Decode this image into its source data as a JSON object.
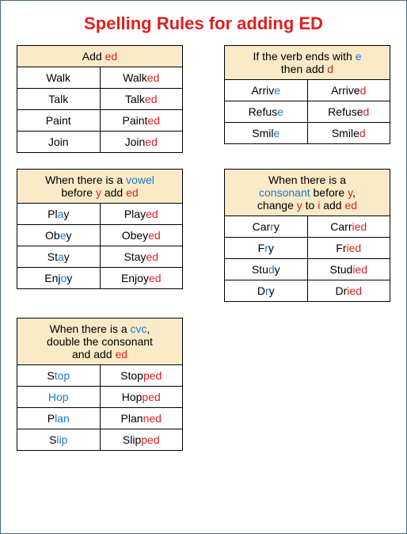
{
  "title": "Spelling Rules for adding ED",
  "tables": [
    {
      "header": [
        {
          "t": "Add ",
          "c": ""
        },
        {
          "t": "ed",
          "c": "red"
        }
      ],
      "rows": [
        [
          [
            {
              "t": "Walk"
            }
          ],
          [
            {
              "t": "Walk"
            },
            {
              "t": "ed",
              "c": "red"
            }
          ]
        ],
        [
          [
            {
              "t": "Talk"
            }
          ],
          [
            {
              "t": "Talk"
            },
            {
              "t": "ed",
              "c": "red"
            }
          ]
        ],
        [
          [
            {
              "t": "Paint"
            }
          ],
          [
            {
              "t": "Paint"
            },
            {
              "t": "ed",
              "c": "red"
            }
          ]
        ],
        [
          [
            {
              "t": "Join"
            }
          ],
          [
            {
              "t": "Join"
            },
            {
              "t": "ed",
              "c": "red"
            }
          ]
        ]
      ]
    },
    {
      "header": [
        {
          "t": "If the verb ends with "
        },
        {
          "t": "e",
          "c": "blue"
        },
        {
          "t": "\nthen add "
        },
        {
          "t": "d",
          "c": "red"
        }
      ],
      "rows": [
        [
          [
            {
              "t": "Arriv"
            },
            {
              "t": "e",
              "c": "blue"
            }
          ],
          [
            {
              "t": "Arrive"
            },
            {
              "t": "d",
              "c": "red"
            }
          ]
        ],
        [
          [
            {
              "t": "Refus"
            },
            {
              "t": "e",
              "c": "blue"
            }
          ],
          [
            {
              "t": "Refuse"
            },
            {
              "t": "d",
              "c": "red"
            }
          ]
        ],
        [
          [
            {
              "t": "Smil"
            },
            {
              "t": "e",
              "c": "blue"
            }
          ],
          [
            {
              "t": "Smile"
            },
            {
              "t": "d",
              "c": "red"
            }
          ]
        ]
      ]
    },
    {
      "header": [
        {
          "t": "When there is a "
        },
        {
          "t": "vowel",
          "c": "blue"
        },
        {
          "t": "\nbefore "
        },
        {
          "t": "y",
          "c": "red"
        },
        {
          "t": " add "
        },
        {
          "t": "ed",
          "c": "red"
        }
      ],
      "rows": [
        [
          [
            {
              "t": "Pl"
            },
            {
              "t": "a",
              "c": "blue"
            },
            {
              "t": "y"
            }
          ],
          [
            {
              "t": "Play"
            },
            {
              "t": "ed",
              "c": "red"
            }
          ]
        ],
        [
          [
            {
              "t": "Ob"
            },
            {
              "t": "e",
              "c": "blue"
            },
            {
              "t": "y"
            }
          ],
          [
            {
              "t": "Obey"
            },
            {
              "t": "ed",
              "c": "red"
            }
          ]
        ],
        [
          [
            {
              "t": "St"
            },
            {
              "t": "a",
              "c": "blue"
            },
            {
              "t": "y"
            }
          ],
          [
            {
              "t": "Stay"
            },
            {
              "t": "ed",
              "c": "red"
            }
          ]
        ],
        [
          [
            {
              "t": "Enj"
            },
            {
              "t": "o",
              "c": "blue"
            },
            {
              "t": "y"
            }
          ],
          [
            {
              "t": "Enjoy"
            },
            {
              "t": "ed",
              "c": "red"
            }
          ]
        ]
      ]
    },
    {
      "header": [
        {
          "t": "When there is a\n"
        },
        {
          "t": "consonant",
          "c": "blue"
        },
        {
          "t": " before "
        },
        {
          "t": "y",
          "c": "red"
        },
        {
          "t": ",\nchange "
        },
        {
          "t": "y",
          "c": "red"
        },
        {
          "t": " to "
        },
        {
          "t": "i",
          "c": "red"
        },
        {
          "t": " add "
        },
        {
          "t": "ed",
          "c": "red"
        }
      ],
      "rows": [
        [
          [
            {
              "t": "Car"
            },
            {
              "t": "r",
              "c": "blue"
            },
            {
              "t": "y"
            }
          ],
          [
            {
              "t": "Carr"
            },
            {
              "t": "ied",
              "c": "red"
            }
          ]
        ],
        [
          [
            {
              "t": "F"
            },
            {
              "t": "r",
              "c": "blue"
            },
            {
              "t": "y"
            }
          ],
          [
            {
              "t": "Fr"
            },
            {
              "t": "ied",
              "c": "red"
            }
          ]
        ],
        [
          [
            {
              "t": "Stu"
            },
            {
              "t": "d",
              "c": "blue"
            },
            {
              "t": "y"
            }
          ],
          [
            {
              "t": "Stud"
            },
            {
              "t": "ied",
              "c": "red"
            }
          ]
        ],
        [
          [
            {
              "t": "D"
            },
            {
              "t": "r",
              "c": "blue"
            },
            {
              "t": "y"
            }
          ],
          [
            {
              "t": "Dr"
            },
            {
              "t": "ied",
              "c": "red"
            }
          ]
        ]
      ]
    },
    {
      "header": [
        {
          "t": "When there is a "
        },
        {
          "t": "cvc",
          "c": "blue"
        },
        {
          "t": ",\ndouble the consonant\nand add "
        },
        {
          "t": "ed",
          "c": "red"
        }
      ],
      "rows": [
        [
          [
            {
              "t": "S"
            },
            {
              "t": "top",
              "c": "blue"
            }
          ],
          [
            {
              "t": "Stop"
            },
            {
              "t": "ped",
              "c": "red"
            }
          ]
        ],
        [
          [
            {
              "t": "Hop",
              "c": "blue"
            }
          ],
          [
            {
              "t": "Hop"
            },
            {
              "t": "ped",
              "c": "red"
            }
          ]
        ],
        [
          [
            {
              "t": "P"
            },
            {
              "t": "lan",
              "c": "blue"
            }
          ],
          [
            {
              "t": "Plan"
            },
            {
              "t": "ned",
              "c": "red"
            }
          ]
        ],
        [
          [
            {
              "t": "S"
            },
            {
              "t": "lip",
              "c": "blue"
            }
          ],
          [
            {
              "t": "Slip"
            },
            {
              "t": "ped",
              "c": "red"
            }
          ]
        ]
      ]
    }
  ]
}
